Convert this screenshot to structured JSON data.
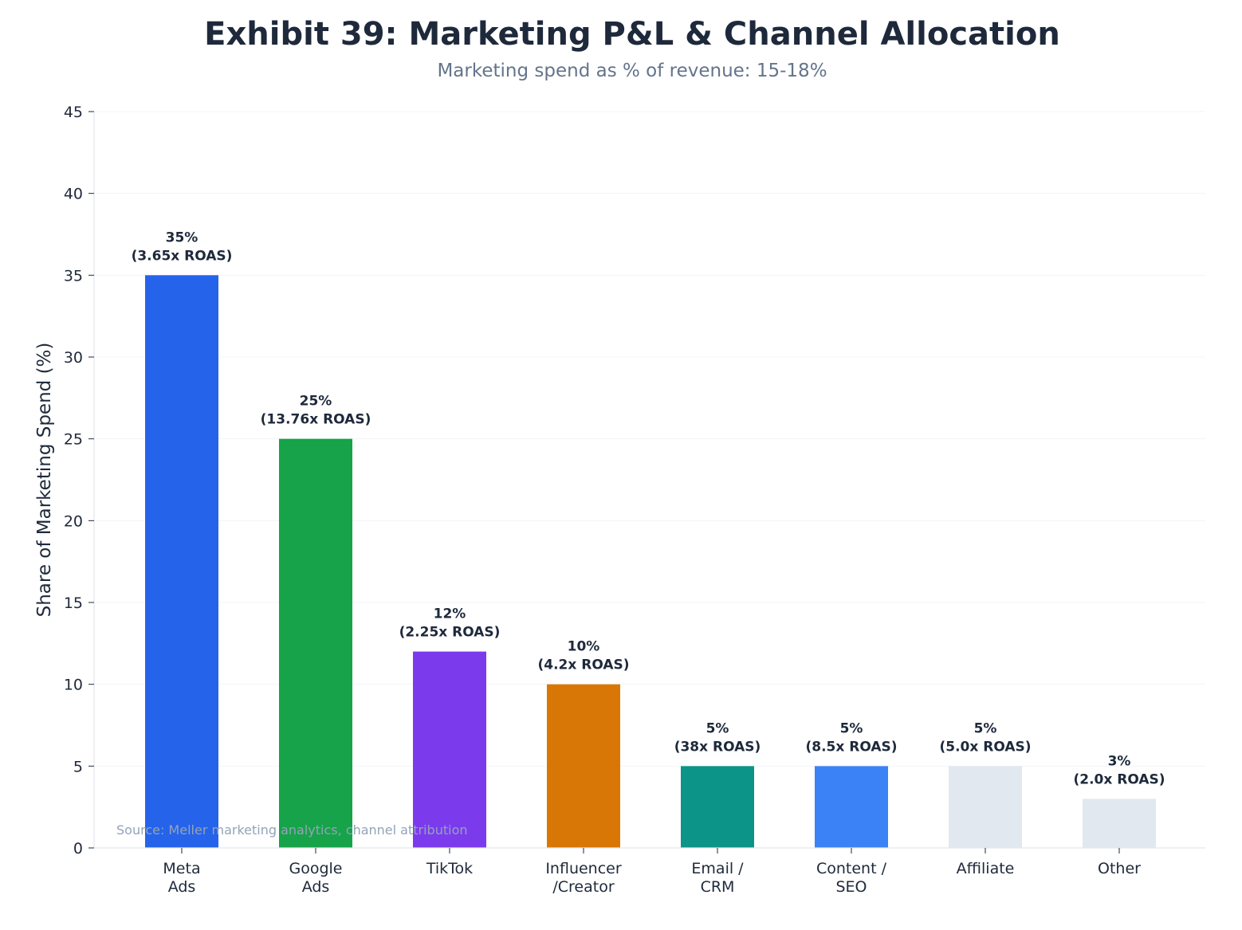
{
  "chart_data": {
    "type": "bar",
    "title": "Exhibit 39: Marketing P&L & Channel Allocation",
    "subtitle": "Marketing spend as % of revenue: 15-18%",
    "xlabel": "",
    "ylabel": "Share of Marketing Spend (%)",
    "ylim": [
      0,
      45
    ],
    "yticks": [
      0,
      5,
      10,
      15,
      20,
      25,
      30,
      35,
      40,
      45
    ],
    "grid": true,
    "categories": [
      [
        "Meta",
        "Ads"
      ],
      [
        "Google",
        "Ads"
      ],
      [
        "TikTok"
      ],
      [
        "Influencer",
        "/Creator"
      ],
      [
        "Email /",
        "CRM"
      ],
      [
        "Content /",
        "SEO"
      ],
      [
        "Affiliate"
      ],
      [
        "Other"
      ]
    ],
    "values": [
      35,
      25,
      12,
      10,
      5,
      5,
      5,
      3
    ],
    "data_labels": [
      [
        "35%",
        "(3.65x ROAS)"
      ],
      [
        "25%",
        "(13.76x ROAS)"
      ],
      [
        "12%",
        "(2.25x ROAS)"
      ],
      [
        "10%",
        "(4.2x ROAS)"
      ],
      [
        "5%",
        "(38x ROAS)"
      ],
      [
        "5%",
        "(8.5x ROAS)"
      ],
      [
        "5%",
        "(5.0x ROAS)"
      ],
      [
        "3%",
        "(2.0x ROAS)"
      ]
    ],
    "colors": [
      "#2563eb",
      "#16a34a",
      "#7c3aed",
      "#d97706",
      "#0d9488",
      "#3b82f6",
      "#e2e8f0",
      "#e2e8f0"
    ],
    "source": "Source: Meller marketing analytics, channel attribution"
  }
}
